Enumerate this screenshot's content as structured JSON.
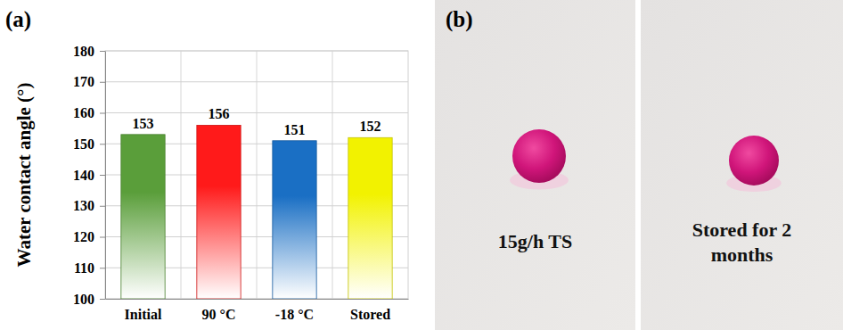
{
  "chart_data": {
    "type": "bar",
    "title": "(a)",
    "y_label": "Water contact angle (°)",
    "categories": [
      "Initial",
      "90 °C",
      "-18 °C",
      "Stored"
    ],
    "values": [
      153,
      156,
      151,
      152
    ],
    "colors": [
      "#5a9e3a",
      "#ff1a1a",
      "#1a6fc4",
      "#f2f200"
    ],
    "ylim": [
      100,
      180
    ],
    "yticks": [
      100,
      110,
      120,
      130,
      140,
      150,
      160,
      170,
      180
    ],
    "grid": true,
    "data_labels": true
  },
  "photo": {
    "panel_label": "(b)",
    "images": [
      {
        "caption": "15g/h TS"
      },
      {
        "caption": "Stored for 2 months"
      }
    ]
  }
}
